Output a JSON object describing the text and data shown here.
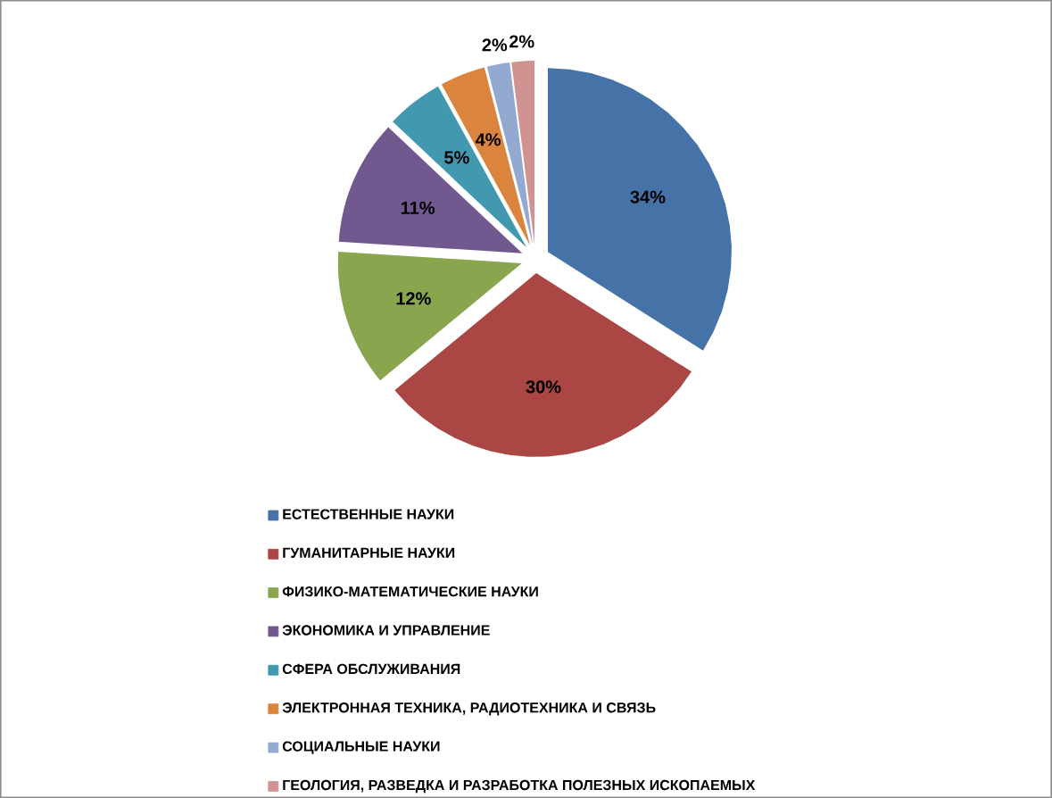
{
  "chart_data": {
    "type": "pie",
    "categories": [
      "ЕСТЕСТВЕННЫЕ НАУКИ",
      "ГУМАНИТАРНЫЕ НАУКИ",
      "ФИЗИКО-МАТЕМАТИЧЕСКИЕ НАУКИ",
      "ЭКОНОМИКА И УПРАВЛЕНИЕ",
      "СФЕРА ОБСЛУЖИВАНИЯ",
      "ЭЛЕКТРОННАЯ ТЕХНИКА, РАДИОТЕХНИКА И СВЯЗЬ",
      "СОЦИАЛЬНЫЕ НАУКИ",
      "ГЕОЛОГИЯ, РАЗВЕДКА И РАЗРАБОТКА ПОЛЕЗНЫХ ИСКОПАЕМЫХ"
    ],
    "values": [
      34,
      30,
      12,
      11,
      5,
      4,
      2,
      2
    ],
    "value_labels": [
      "34%",
      "30%",
      "12%",
      "11%",
      "5%",
      "4%",
      "2%",
      "2%"
    ],
    "colors": [
      "#4572a7",
      "#aa4643",
      "#89a54e",
      "#71588f",
      "#4198af",
      "#db843d",
      "#93a9cf",
      "#d19392"
    ],
    "legend": "bottom"
  }
}
